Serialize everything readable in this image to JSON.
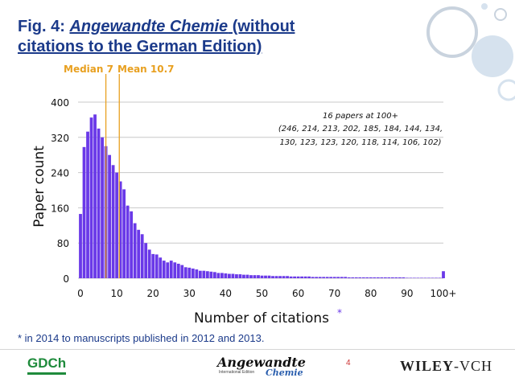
{
  "slide": {
    "title_prefix": "Fig. 4: ",
    "title_journal": "Angewandte Chemie",
    "title_rest1": " (without",
    "title_line2": "citations to the German Edition)",
    "footnote": "* in 2014 to manuscripts published in 2012 and 2013.",
    "page_number": "4",
    "logo_gdch": "GDCh",
    "logo_angewandte": "Angewandte",
    "logo_chemie": "Chemie",
    "logo_international": "International Edition",
    "logo_wiley": "WILEY",
    "logo_vch": "-VCH"
  },
  "colors": {
    "bar": "#6a39e8",
    "accent": "#e8a020",
    "title": "#1b3a8a",
    "grid": "#c8c8c8"
  },
  "chart_data": {
    "type": "bar",
    "xlabel": "Number of citations",
    "xlabel_asterisk": "*",
    "ylabel": "Paper count",
    "xlim": [
      0,
      100
    ],
    "ylim": [
      0,
      400
    ],
    "yticks": [
      0,
      80,
      160,
      240,
      320,
      400
    ],
    "xtick_labels": [
      "0",
      "10",
      "20",
      "30",
      "40",
      "50",
      "60",
      "70",
      "80",
      "90",
      "100+"
    ],
    "xtick_values": [
      0,
      10,
      20,
      30,
      40,
      50,
      60,
      70,
      80,
      90,
      100
    ],
    "grid": true,
    "median": {
      "label": "Median 7",
      "value": 7
    },
    "mean": {
      "label": "Mean 10.7",
      "value": 10.7
    },
    "annotation": {
      "line1": "16 papers at 100+",
      "line2": "(246, 214, 213, 202, 185, 184, 144, 134,",
      "line3": "130, 123, 123, 120, 118, 114, 106, 102)"
    },
    "x": [
      0,
      1,
      2,
      3,
      4,
      5,
      6,
      7,
      8,
      9,
      10,
      11,
      12,
      13,
      14,
      15,
      16,
      17,
      18,
      19,
      20,
      21,
      22,
      23,
      24,
      25,
      26,
      27,
      28,
      29,
      30,
      31,
      32,
      33,
      34,
      35,
      36,
      37,
      38,
      39,
      40,
      41,
      42,
      43,
      44,
      45,
      46,
      47,
      48,
      49,
      50,
      51,
      52,
      53,
      54,
      55,
      56,
      57,
      58,
      59,
      60,
      61,
      62,
      63,
      64,
      65,
      66,
      67,
      68,
      69,
      70,
      71,
      72,
      73,
      74,
      75,
      76,
      77,
      78,
      79,
      80,
      81,
      82,
      83,
      84,
      85,
      86,
      87,
      88,
      89,
      90,
      91,
      92,
      93,
      94,
      95,
      96,
      97,
      98,
      99,
      100
    ],
    "values": [
      146,
      298,
      333,
      365,
      372,
      340,
      320,
      300,
      280,
      257,
      240,
      220,
      202,
      165,
      152,
      125,
      110,
      100,
      80,
      65,
      55,
      54,
      47,
      40,
      36,
      40,
      36,
      33,
      30,
      25,
      24,
      22,
      20,
      17,
      17,
      16,
      15,
      14,
      12,
      12,
      11,
      10,
      10,
      9,
      9,
      8,
      8,
      7,
      7,
      7,
      6,
      6,
      6,
      5,
      5,
      5,
      5,
      5,
      4,
      4,
      4,
      4,
      4,
      4,
      3,
      3,
      3,
      3,
      3,
      3,
      3,
      3,
      3,
      3,
      2,
      2,
      2,
      2,
      2,
      2,
      2,
      2,
      2,
      2,
      2,
      2,
      2,
      2,
      2,
      2,
      1,
      1,
      1,
      1,
      1,
      1,
      1,
      1,
      1,
      1,
      16
    ]
  }
}
